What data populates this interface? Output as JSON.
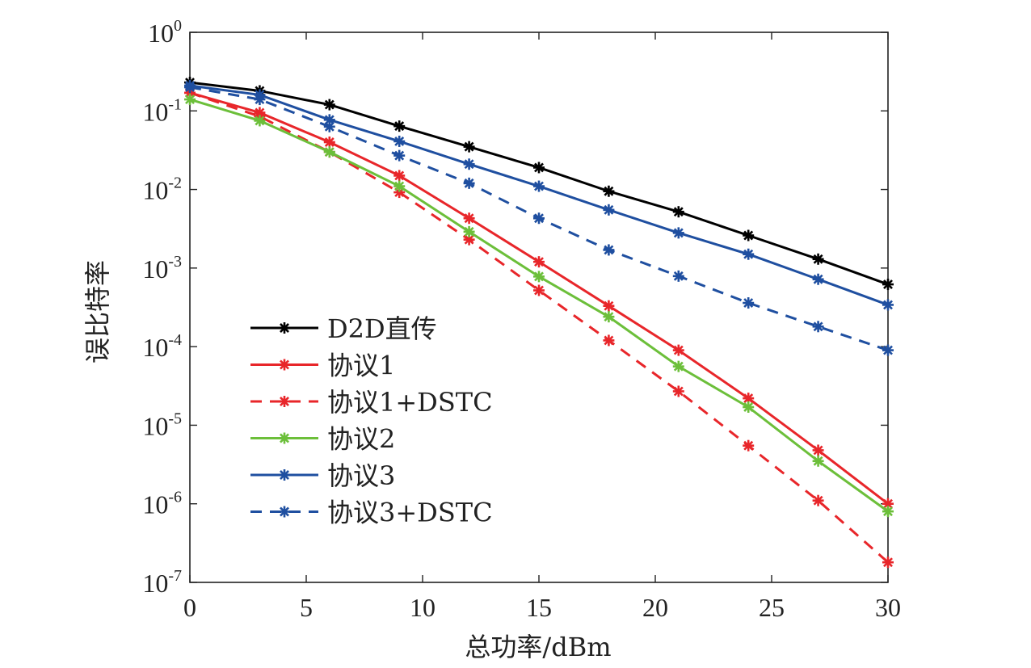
{
  "chart_data": {
    "type": "line",
    "xlabel": "总功率/dBm",
    "ylabel": "误比特率",
    "x": [
      0,
      3,
      6,
      9,
      12,
      15,
      18,
      21,
      24,
      27,
      30
    ],
    "xlim": [
      0,
      30
    ],
    "x_ticks": [
      0,
      5,
      10,
      15,
      20,
      25,
      30
    ],
    "x_tick_labels": [
      "0",
      "5",
      "10",
      "15",
      "20",
      "25",
      "30"
    ],
    "y_scale": "log",
    "ylim": [
      1e-07,
      1
    ],
    "y_tick_labels": [
      {
        "base": "10",
        "exp": "0"
      },
      {
        "base": "10",
        "exp": "-1"
      },
      {
        "base": "10",
        "exp": "-2"
      },
      {
        "base": "10",
        "exp": "-3"
      },
      {
        "base": "10",
        "exp": "-4"
      },
      {
        "base": "10",
        "exp": "-5"
      },
      {
        "base": "10",
        "exp": "-6"
      },
      {
        "base": "10",
        "exp": "-7"
      }
    ],
    "grid": false,
    "legend_position": "lower-left",
    "series": [
      {
        "name": "D2D直传",
        "color": "#000000",
        "dash": "solid",
        "values": [
          0.23,
          0.18,
          0.12,
          0.064,
          0.035,
          0.019,
          0.0095,
          0.0052,
          0.0026,
          0.0013,
          0.00062
        ]
      },
      {
        "name": "协议1",
        "color": "#e8262a",
        "dash": "solid",
        "values": [
          0.17,
          0.095,
          0.04,
          0.015,
          0.0043,
          0.0012,
          0.00033,
          9e-05,
          2.2e-05,
          4.8e-06,
          1e-06
        ]
      },
      {
        "name": "协议1+DSTC",
        "color": "#e8262a",
        "dash": "dashed",
        "values": [
          0.17,
          0.085,
          0.03,
          0.0092,
          0.0023,
          0.00052,
          0.00012,
          2.7e-05,
          5.5e-06,
          1.1e-06,
          1.8e-07
        ]
      },
      {
        "name": "协议2",
        "color": "#6cbf3a",
        "dash": "solid",
        "values": [
          0.14,
          0.075,
          0.03,
          0.011,
          0.0029,
          0.00078,
          0.00024,
          5.6e-05,
          1.7e-05,
          3.5e-06,
          8e-07
        ]
      },
      {
        "name": "协议3",
        "color": "#1f4fa0",
        "dash": "solid",
        "values": [
          0.21,
          0.16,
          0.077,
          0.041,
          0.021,
          0.011,
          0.0055,
          0.0028,
          0.0015,
          0.00072,
          0.00034
        ]
      },
      {
        "name": "协议3+DSTC",
        "color": "#1f4fa0",
        "dash": "dashed",
        "values": [
          0.2,
          0.14,
          0.063,
          0.027,
          0.012,
          0.0043,
          0.0017,
          0.00079,
          0.00036,
          0.00018,
          9e-05
        ]
      }
    ]
  }
}
